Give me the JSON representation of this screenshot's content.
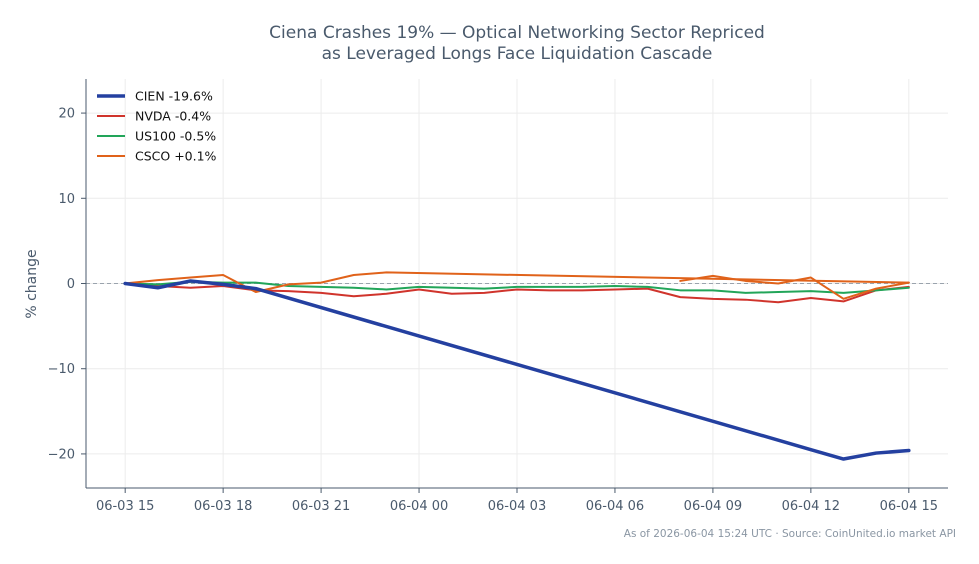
{
  "chart_data": {
    "type": "line",
    "title_lines": [
      "Ciena Crashes 19% — Optical Networking Sector Repriced",
      "as Leveraged Longs Face Liquidation Cascade"
    ],
    "ylabel": "% change",
    "xlabel": "",
    "x_tick_labels": [
      "06-03 15",
      "06-03 18",
      "06-03 21",
      "06-04 00",
      "06-04 03",
      "06-04 06",
      "06-04 09",
      "06-04 12",
      "06-04 15"
    ],
    "x_tick_hours": [
      0,
      3,
      6,
      9,
      12,
      15,
      18,
      21,
      24
    ],
    "xlim_hours": [
      -1.2,
      25.2
    ],
    "y_ticks": [
      20,
      10,
      0,
      -10,
      -20
    ],
    "ylim": [
      -24,
      24
    ],
    "zero_line": true,
    "grid": true,
    "legend_position": "top-left",
    "series": [
      {
        "name": "CIEN -19.6%",
        "color": "#2440a0",
        "width": 3.5,
        "x": [
          0,
          1,
          2,
          3,
          4,
          12,
          21,
          22,
          23,
          24
        ],
        "y": [
          0,
          -0.5,
          0.3,
          -0.1,
          -0.6,
          -9.5,
          -19.5,
          -20.6,
          -19.9,
          -19.6
        ]
      },
      {
        "name": "NVDA -0.4%",
        "color": "#d0342c",
        "width": 2,
        "x": [
          0,
          1,
          2,
          3,
          4,
          5,
          6,
          7,
          8,
          9,
          10,
          11,
          12,
          13,
          14,
          15,
          16,
          17,
          18,
          19,
          20,
          21,
          22,
          23,
          24
        ],
        "y": [
          0,
          -0.3,
          -0.5,
          -0.3,
          -0.8,
          -0.9,
          -1.1,
          -1.5,
          -1.2,
          -0.7,
          -1.2,
          -1.1,
          -0.7,
          -0.8,
          -0.8,
          -0.7,
          -0.6,
          -1.6,
          -1.8,
          -1.9,
          -2.2,
          -1.7,
          -2.1,
          -0.8,
          -0.4
        ]
      },
      {
        "name": "US100 -0.5%",
        "color": "#22a559",
        "width": 2,
        "x": [
          0,
          1,
          2,
          3,
          4,
          5,
          6,
          7,
          8,
          9,
          10,
          11,
          12,
          13,
          14,
          15,
          16,
          17,
          18,
          19,
          20,
          21,
          22,
          23,
          24
        ],
        "y": [
          0,
          -0.1,
          0.2,
          0.1,
          0.1,
          -0.3,
          -0.4,
          -0.5,
          -0.7,
          -0.4,
          -0.5,
          -0.6,
          -0.4,
          -0.4,
          -0.4,
          -0.3,
          -0.4,
          -0.8,
          -0.8,
          -1.1,
          -1.0,
          -0.9,
          -1.1,
          -0.8,
          -0.5
        ]
      },
      {
        "name": "CSCO +0.1%",
        "color": "#e0621a",
        "width": 2,
        "x": [
          0,
          1,
          2,
          3,
          4,
          5,
          6,
          7,
          8,
          24
        ],
        "y": [
          0,
          0.4,
          0.7,
          1.0,
          -1.0,
          -0.1,
          0.1,
          1.0,
          1.3,
          0.1
        ],
        "x_tail": [
          17,
          18,
          19,
          20,
          21,
          22,
          23,
          24
        ],
        "y_tail": [
          0.3,
          0.9,
          0.3,
          0.0,
          0.7,
          -1.8,
          -0.6,
          0.1
        ]
      }
    ]
  },
  "footer": "As of 2026-06-04 15:24 UTC · Source: CoinUnited.io market API"
}
